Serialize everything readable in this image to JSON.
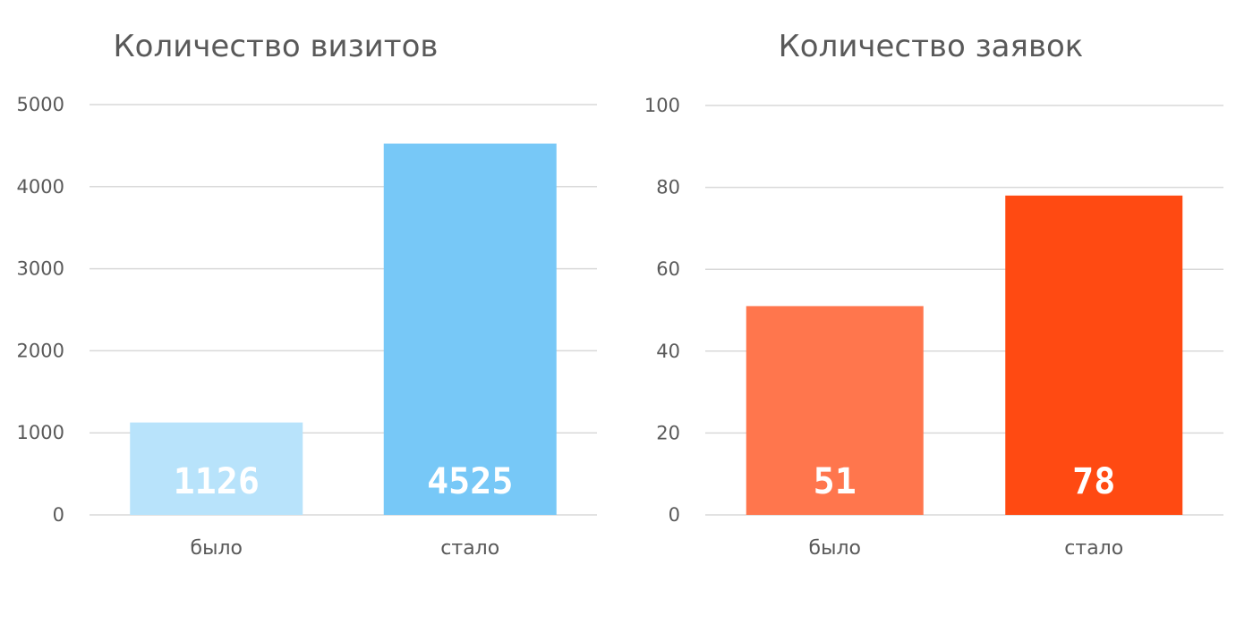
{
  "chart_data": [
    {
      "type": "bar",
      "title": "Количество визитов",
      "categories": [
        "было",
        "стало"
      ],
      "values": [
        1126,
        4525
      ],
      "data_labels": [
        "1126",
        "4525"
      ],
      "bar_colors": [
        "#b8e3fb",
        "#77c8f7"
      ],
      "ylim": [
        0,
        5000
      ],
      "yticks": [
        "0",
        "1000",
        "2000",
        "3000",
        "4000",
        "5000"
      ],
      "grid": true,
      "xlabel": "",
      "ylabel": ""
    },
    {
      "type": "bar",
      "title": "Количество заявок",
      "categories": [
        "было",
        "стало"
      ],
      "values": [
        51,
        78
      ],
      "data_labels": [
        "51",
        "78"
      ],
      "bar_colors": [
        "#ff764d",
        "#ff4a12"
      ],
      "ylim": [
        0,
        100
      ],
      "yticks": [
        "0",
        "20",
        "40",
        "60",
        "80",
        "100"
      ],
      "grid": true,
      "xlabel": "",
      "ylabel": ""
    }
  ]
}
